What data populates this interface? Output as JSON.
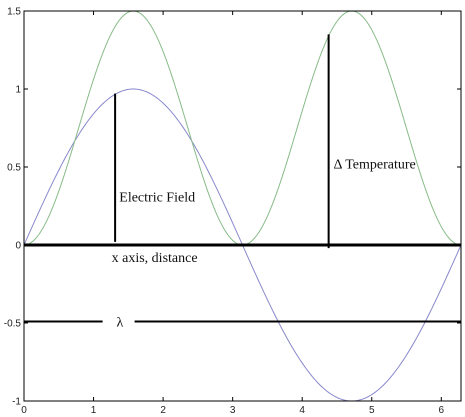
{
  "chart_data": {
    "type": "line",
    "title": "",
    "xlabel": "",
    "ylabel": "",
    "xlim": [
      0,
      6.2832
    ],
    "ylim": [
      -1,
      1.5
    ],
    "x_ticks": [
      0,
      1,
      2,
      3,
      4,
      5,
      6
    ],
    "x_tick_labels": [
      "0",
      "1",
      "2",
      "3",
      "4",
      "5",
      "6"
    ],
    "y_ticks": [
      -1,
      -0.5,
      0,
      0.5,
      1,
      1.5
    ],
    "y_tick_labels": [
      "-1",
      "-0.5",
      "0",
      "0.5",
      "1",
      "1.5"
    ],
    "grid": false,
    "series": [
      {
        "color": "#8888cc",
        "function": "sin(x)",
        "x": [
          0,
          0.5236,
          1.0472,
          1.5708,
          2.0944,
          2.618,
          3.1416,
          3.6652,
          4.1888,
          4.7124,
          5.236,
          5.7596,
          6.2832
        ],
        "y": [
          0,
          0.5,
          0.866,
          1,
          0.866,
          0.5,
          0,
          -0.5,
          -0.866,
          -1,
          -0.866,
          -0.5,
          0
        ]
      },
      {
        "color": "#88bb88",
        "function": "1.5*sin(x)^2",
        "x": [
          0,
          0.5236,
          1.0472,
          1.5708,
          2.0944,
          2.618,
          3.1416,
          3.6652,
          4.1888,
          4.7124,
          5.236,
          5.7596,
          6.2832
        ],
        "y": [
          0,
          0.375,
          1.125,
          1.5,
          1.125,
          0.375,
          0,
          0.375,
          1.125,
          1.5,
          1.125,
          0.375,
          0
        ]
      }
    ],
    "annotations": {
      "electric_field": {
        "text": "Electric Field",
        "bar_x": 1.31,
        "bar_y": [
          0.02,
          0.97
        ],
        "text_at": [
          1.37,
          0.28
        ]
      },
      "delta_temp": {
        "text": "Δ Temperature",
        "bar_x": 4.38,
        "bar_y": [
          -0.02,
          1.35
        ],
        "text_at": [
          4.45,
          0.49
        ]
      },
      "x_axis": {
        "text": "x axis, distance",
        "y": 0,
        "text_at": [
          1.26,
          -0.11
        ]
      },
      "wavelength": {
        "text": "λ",
        "y": -0.49,
        "segments": [
          [
            0,
            1.13
          ],
          [
            1.59,
            6.28
          ]
        ],
        "text_at": [
          1.33,
          -0.49
        ]
      }
    }
  }
}
